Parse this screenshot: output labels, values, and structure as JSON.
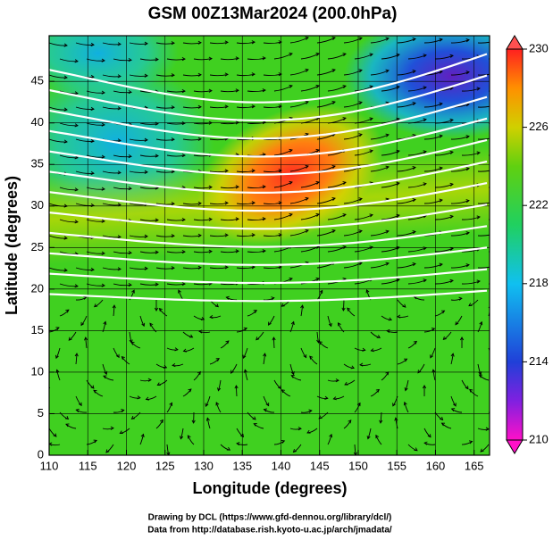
{
  "map": {
    "title": "GSM 00Z13Mar2024 (200.0hPa)",
    "x_label": "Longitude (degrees)",
    "y_label": "Latitude  (degrees)",
    "xlim": [
      110,
      167
    ],
    "xticks": [
      110,
      115,
      120,
      125,
      130,
      135,
      140,
      145,
      150,
      155,
      160,
      165
    ],
    "ylim": [
      0,
      50.5
    ],
    "yticks": [
      0,
      5,
      10,
      15,
      20,
      25,
      30,
      35,
      40,
      45
    ],
    "colorbar": {
      "lim": [
        210,
        230
      ],
      "ticks": [
        210,
        214,
        218,
        222,
        226,
        230
      ]
    },
    "credits": [
      "Drawing by DCL (https://www.gfd-dennou.org/library/dcl/)",
      "Data from http://database.rish.kyoto-u.ac.jp/arch/jmadata/"
    ]
  }
}
